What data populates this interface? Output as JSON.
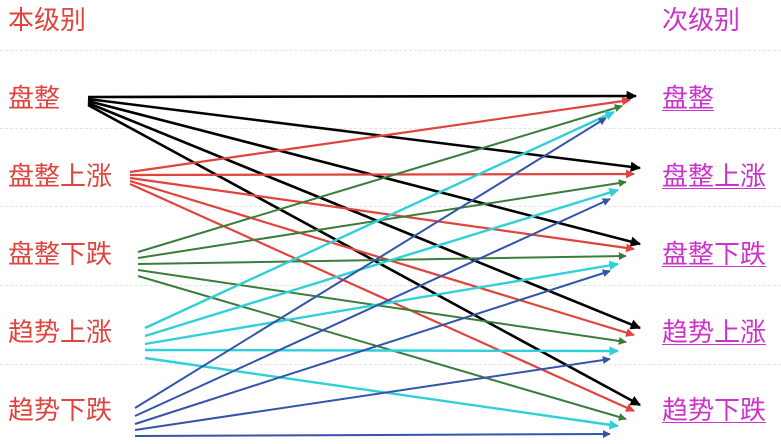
{
  "left_header": "本级别",
  "right_header": "次级别",
  "left_labels": [
    "盘整",
    "盘整上涨",
    "盘整下跌",
    "趋势上涨",
    "趋势下跌"
  ],
  "right_labels": [
    "盘整",
    "盘整上涨",
    "盘整下跌",
    "趋势上涨",
    "趋势下跌"
  ],
  "colors": {
    "left_text": "#e0443e",
    "right_text": "#cc33cc",
    "sources": [
      "#000000",
      "#e0443e",
      "#3a7d3a",
      "#2fd0d8",
      "#3355aa"
    ]
  }
}
